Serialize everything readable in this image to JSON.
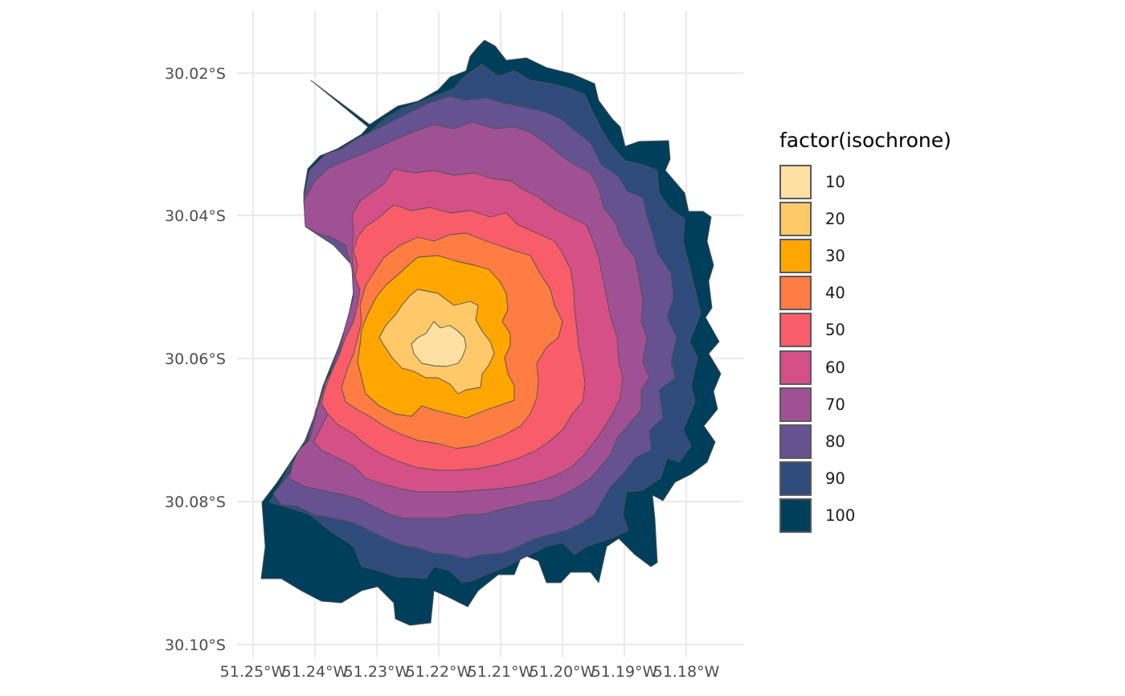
{
  "map": {
    "y_tick_labels": [
      "30.02°S",
      "30.04°S",
      "30.06°S",
      "30.08°S",
      "30.10°S"
    ],
    "x_tick_labels": [
      "51.25°W",
      "51.24°W",
      "51.23°W",
      "51.22°W",
      "51.21°W",
      "51.20°W",
      "51.19°W",
      "51.18°W"
    ]
  },
  "legend": {
    "title": "factor(isochrone)",
    "items": [
      {
        "label": "10",
        "color": "#FFE0A3"
      },
      {
        "label": "20",
        "color": "#FFC869"
      },
      {
        "label": "30",
        "color": "#FFA600"
      },
      {
        "label": "40",
        "color": "#FF7C43"
      },
      {
        "label": "50",
        "color": "#F95D6A"
      },
      {
        "label": "60",
        "color": "#D45087"
      },
      {
        "label": "70",
        "color": "#A05195"
      },
      {
        "label": "80",
        "color": "#665191"
      },
      {
        "label": "90",
        "color": "#2F4B7C"
      },
      {
        "label": "100",
        "color": "#003F5C"
      }
    ]
  }
}
